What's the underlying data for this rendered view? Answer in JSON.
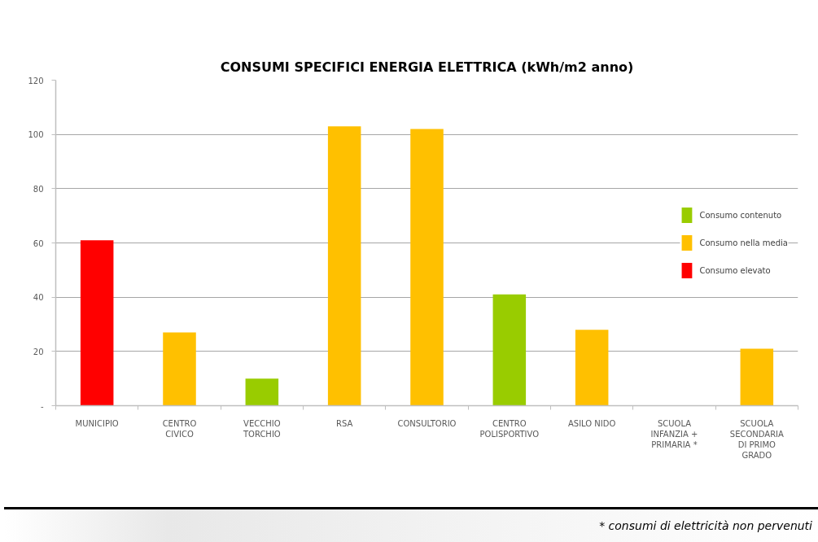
{
  "chart_data": {
    "type": "bar",
    "title": "CONSUMI SPECIFICI ENERGIA ELETTRICA (kWh/m2 anno)",
    "categories": [
      "MUNICIPIO",
      "CENTRO CIVICO",
      "VECCHIO TORCHIO",
      "RSA",
      "CONSULTORIO",
      "CENTRO POLISPORTIVO",
      "ASILO NIDO",
      "SCUOLA INFANZIA + PRIMARIA *",
      "SCUOLA SECONDARIA DI PRIMO GRADO"
    ],
    "series": [
      {
        "name": "Consumo contenuto",
        "color": "#99cc00",
        "values": [
          null,
          null,
          10,
          null,
          null,
          41,
          null,
          null,
          null
        ]
      },
      {
        "name": "Consumo nella media",
        "color": "#ffc000",
        "values": [
          null,
          27,
          null,
          103,
          102,
          null,
          28,
          null,
          21
        ]
      },
      {
        "name": "Consumo elevato",
        "color": "#ff0000",
        "values": [
          61,
          null,
          null,
          null,
          null,
          null,
          null,
          null,
          null
        ]
      }
    ],
    "stacked": true,
    "ylim": [
      0,
      120
    ],
    "yticks": [
      {
        "value": 0,
        "label": "-"
      },
      20,
      40,
      60,
      80,
      100,
      120
    ],
    "grid": "y",
    "legend": "right",
    "annotations": [
      "* consumi di elettricità non pervenuti"
    ]
  }
}
